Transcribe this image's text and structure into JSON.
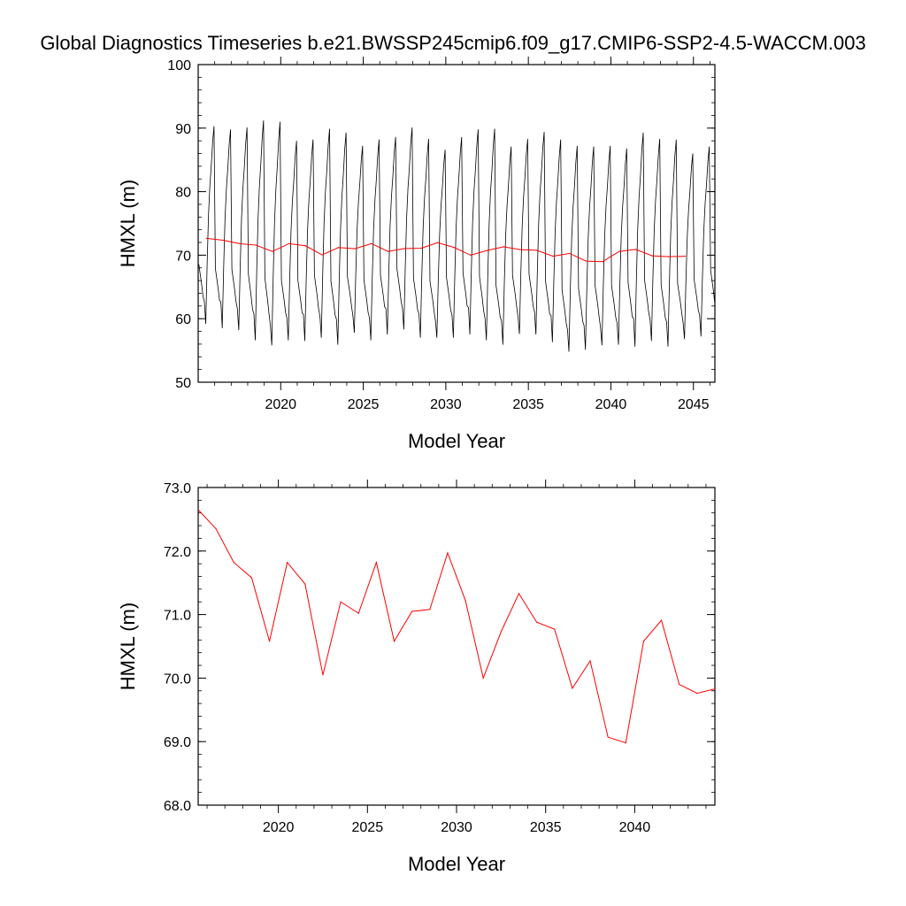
{
  "figure": {
    "title": "Global Diagnostics Timeseries b.e21.BWSSP245cmip6.f09_g17.CMIP6-SSP2-4.5-WACCM.003"
  },
  "colors": {
    "monthly": "#000000",
    "annual": "#ff0000",
    "axis": "#000000"
  },
  "chart_data": [
    {
      "type": "line",
      "xlabel": "Model Year",
      "ylabel": "HMXL (m)",
      "xlim": [
        2015,
        2046.3
      ],
      "ylim": [
        50,
        100
      ],
      "x_ticks": [
        2020,
        2025,
        2030,
        2035,
        2040,
        2045
      ],
      "x_tick_labels": [
        "2020",
        "2025",
        "2030",
        "2035",
        "2040",
        "2045"
      ],
      "y_ticks": [
        50,
        60,
        70,
        80,
        90,
        100
      ],
      "y_tick_labels": [
        "50",
        "60",
        "70",
        "80",
        "90",
        "100"
      ],
      "series": [
        {
          "color": "#000000",
          "description_free": true,
          "kind": "monthly",
          "start_year": 2015,
          "cycle_peaks": [
            90.3,
            89.8,
            90.1,
            91.2,
            91.0,
            88.0,
            88.2,
            89.9,
            89.3,
            87.2,
            88.2,
            88.6,
            90.1,
            88.3,
            86.6,
            88.6,
            89.8,
            89.9,
            87.1,
            88.3,
            89.4,
            88.2,
            87.2,
            87.1,
            87.2,
            86.8,
            89.3,
            88.3,
            88.2,
            86.0,
            87.1,
            90.2
          ],
          "cycle_troughs": [
            59.2,
            58.5,
            58.2,
            56.6,
            55.8,
            56.6,
            56.5,
            57.0,
            55.9,
            57.8,
            56.6,
            57.5,
            58.3,
            57.0,
            57.0,
            57.0,
            57.5,
            56.6,
            55.9,
            57.6,
            57.5,
            56.3,
            54.8,
            55.1,
            55.8,
            55.9,
            55.6,
            56.5,
            55.6,
            56.8,
            57.2,
            58.0
          ]
        },
        {
          "color": "#ff0000",
          "kind": "annual",
          "x": [
            2015.5,
            2016.5,
            2017.5,
            2018.5,
            2019.5,
            2020.5,
            2021.5,
            2022.5,
            2023.5,
            2024.5,
            2025.5,
            2026.5,
            2027.5,
            2028.5,
            2029.5,
            2030.5,
            2031.5,
            2032.5,
            2033.5,
            2034.5,
            2035.5,
            2036.5,
            2037.5,
            2038.5,
            2039.5,
            2040.5,
            2041.5,
            2042.5,
            2043.5,
            2044.5
          ],
          "y": [
            72.65,
            72.35,
            71.82,
            71.58,
            70.58,
            71.82,
            71.48,
            70.05,
            71.2,
            71.02,
            71.82,
            70.58,
            71.05,
            71.08,
            71.97,
            71.22,
            70.0,
            70.73,
            71.33,
            70.88,
            70.77,
            69.84,
            70.27,
            69.07,
            68.98,
            70.58,
            70.91,
            69.9,
            69.76,
            69.83
          ]
        }
      ]
    },
    {
      "type": "line",
      "xlabel": "Model Year",
      "ylabel": "HMXL (m)",
      "xlim": [
        2015.5,
        2044.5
      ],
      "ylim": [
        68.0,
        73.0
      ],
      "x_ticks": [
        2020,
        2025,
        2030,
        2035,
        2040
      ],
      "x_tick_labels": [
        "2020",
        "2025",
        "2030",
        "2035",
        "2040"
      ],
      "y_ticks": [
        68.0,
        69.0,
        70.0,
        71.0,
        72.0,
        73.0
      ],
      "y_tick_labels": [
        "68.0",
        "69.0",
        "70.0",
        "71.0",
        "72.0",
        "73.0"
      ],
      "series": [
        {
          "color": "#ff0000",
          "kind": "annual",
          "x": [
            2015.5,
            2016.5,
            2017.5,
            2018.5,
            2019.5,
            2020.5,
            2021.5,
            2022.5,
            2023.5,
            2024.5,
            2025.5,
            2026.5,
            2027.5,
            2028.5,
            2029.5,
            2030.5,
            2031.5,
            2032.5,
            2033.5,
            2034.5,
            2035.5,
            2036.5,
            2037.5,
            2038.5,
            2039.5,
            2040.5,
            2041.5,
            2042.5,
            2043.5,
            2044.5
          ],
          "y": [
            72.65,
            72.35,
            71.82,
            71.58,
            70.58,
            71.82,
            71.48,
            70.05,
            71.2,
            71.02,
            71.82,
            70.58,
            71.05,
            71.08,
            71.97,
            71.22,
            70.0,
            70.73,
            71.33,
            70.88,
            70.77,
            69.84,
            70.27,
            69.07,
            68.98,
            70.58,
            70.91,
            69.9,
            69.76,
            69.83
          ]
        }
      ]
    }
  ]
}
